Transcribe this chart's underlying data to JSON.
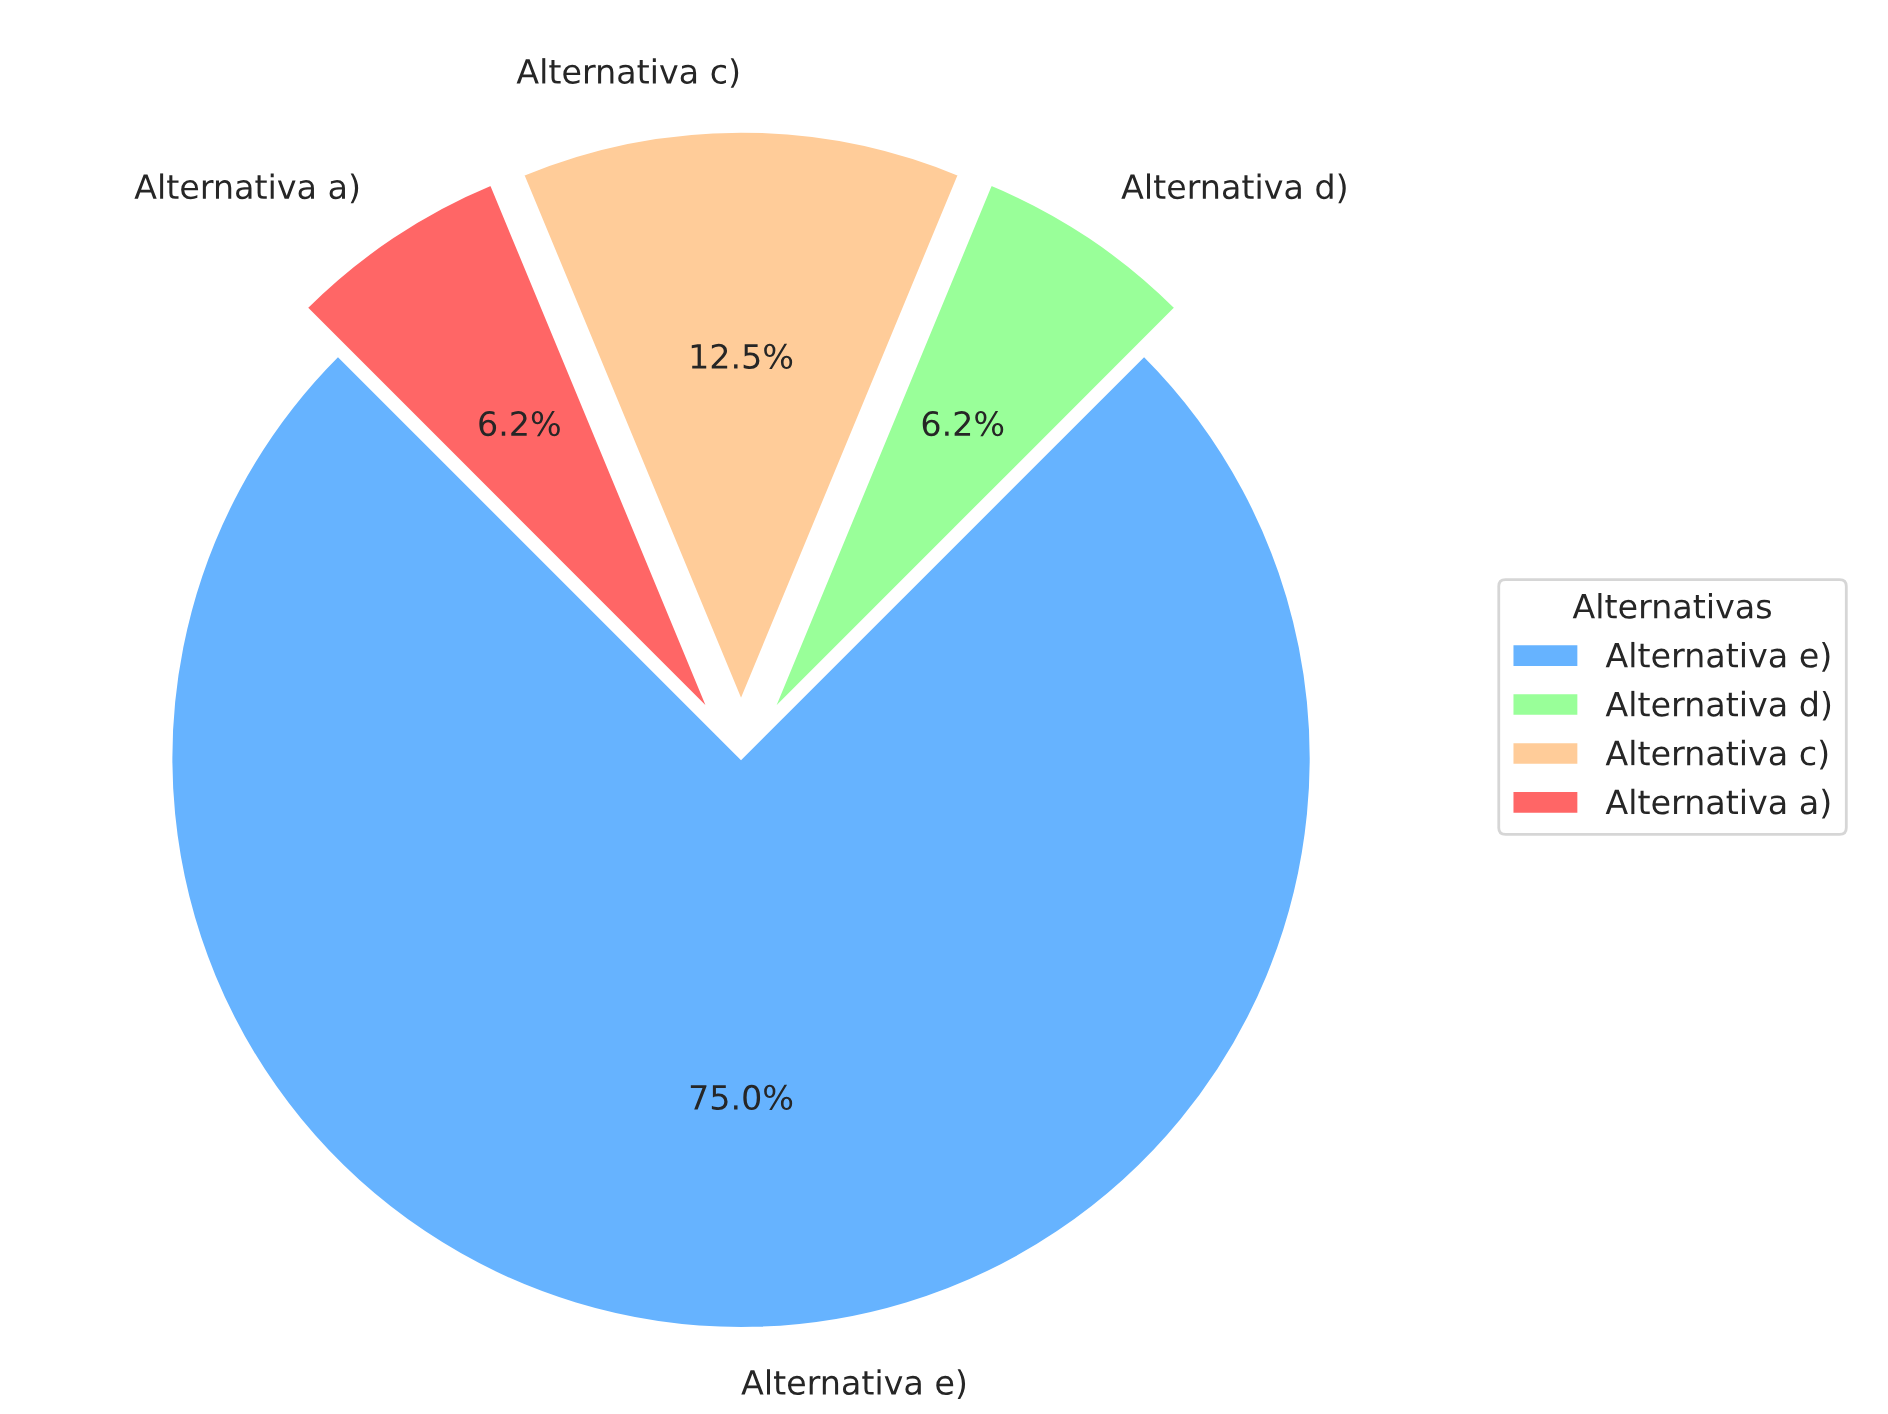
{
  "chart_data": {
    "type": "pie",
    "legend_title": "Alternativas",
    "legend": "right",
    "categories": [
      "Alternativa e)",
      "Alternativa d)",
      "Alternativa c)",
      "Alternativa a)"
    ],
    "values": [
      75,
      6.25,
      12.5,
      6.25
    ],
    "value_labels": [
      "75.0%",
      "6.2%",
      "12.5%",
      "6.2%"
    ],
    "colors": [
      "#66b3ff",
      "#99ff99",
      "#ffcc99",
      "#ff6666"
    ]
  }
}
